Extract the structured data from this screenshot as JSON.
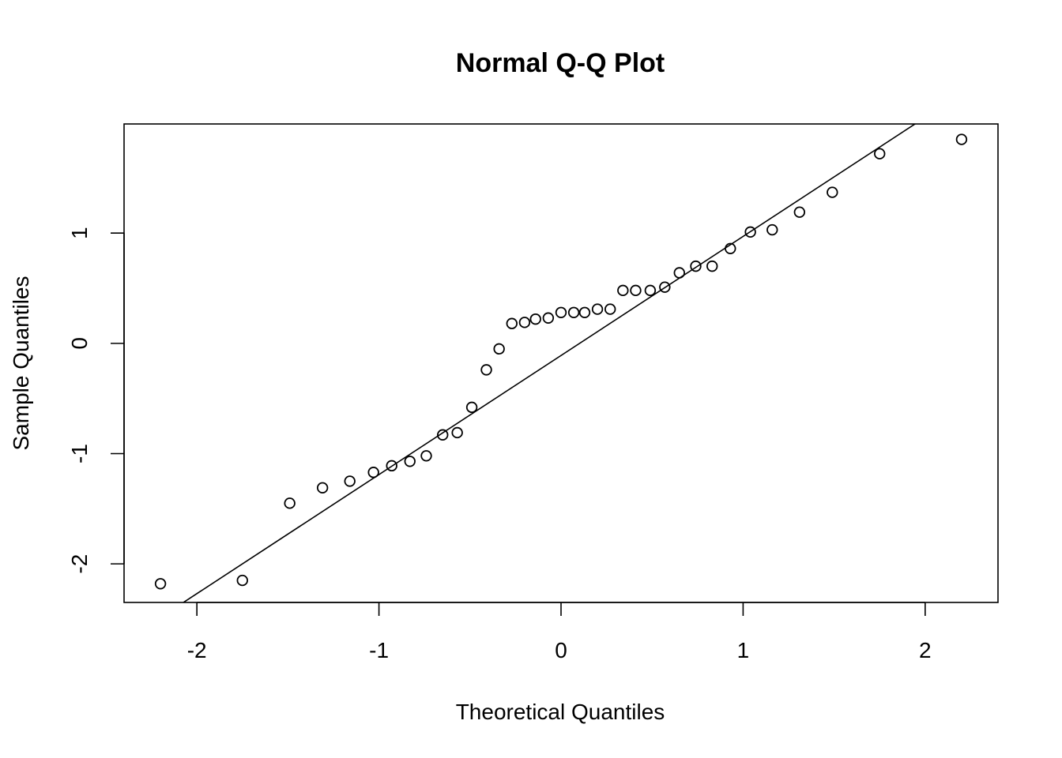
{
  "chart_data": {
    "type": "scatter",
    "title": "Normal Q-Q Plot",
    "xlabel": "Theoretical Quantiles",
    "ylabel": "Sample Quantiles",
    "xlim": [
      -2.4,
      2.4
    ],
    "ylim": [
      -2.35,
      1.99
    ],
    "x_ticks": [
      -2,
      -1,
      0,
      1,
      2
    ],
    "x_tick_labels": [
      "-2",
      "-1",
      "0",
      "1",
      "2"
    ],
    "y_ticks": [
      -2,
      -1,
      0,
      1
    ],
    "y_tick_labels": [
      "-2",
      "-1",
      "0",
      "1"
    ],
    "grid": false,
    "legend": "none",
    "reference_line": {
      "points": [
        [
          -2.0,
          -2.27
        ],
        [
          2.0,
          2.05
        ]
      ]
    },
    "series": [
      {
        "marker": "open-circle",
        "x": [
          -2.2,
          -1.75,
          -1.49,
          -1.31,
          -1.16,
          -1.03,
          -0.93,
          -0.83,
          -0.74,
          -0.65,
          -0.57,
          -0.49,
          -0.41,
          -0.34,
          -0.27,
          -0.2,
          -0.14,
          -0.07,
          0.0,
          0.07,
          0.13,
          0.2,
          0.27,
          0.34,
          0.41,
          0.49,
          0.57,
          0.65,
          0.74,
          0.83,
          0.93,
          1.04,
          1.16,
          1.31,
          1.49,
          1.75,
          2.2
        ],
        "y": [
          -2.18,
          -2.15,
          -1.45,
          -1.31,
          -1.25,
          -1.17,
          -1.11,
          -1.07,
          -1.02,
          -0.83,
          -0.81,
          -0.58,
          -0.24,
          -0.05,
          0.18,
          0.19,
          0.22,
          0.23,
          0.28,
          0.28,
          0.28,
          0.31,
          0.31,
          0.48,
          0.48,
          0.48,
          0.51,
          0.64,
          0.7,
          0.7,
          0.86,
          1.01,
          1.03,
          1.19,
          1.37,
          1.72,
          1.85
        ]
      }
    ]
  }
}
